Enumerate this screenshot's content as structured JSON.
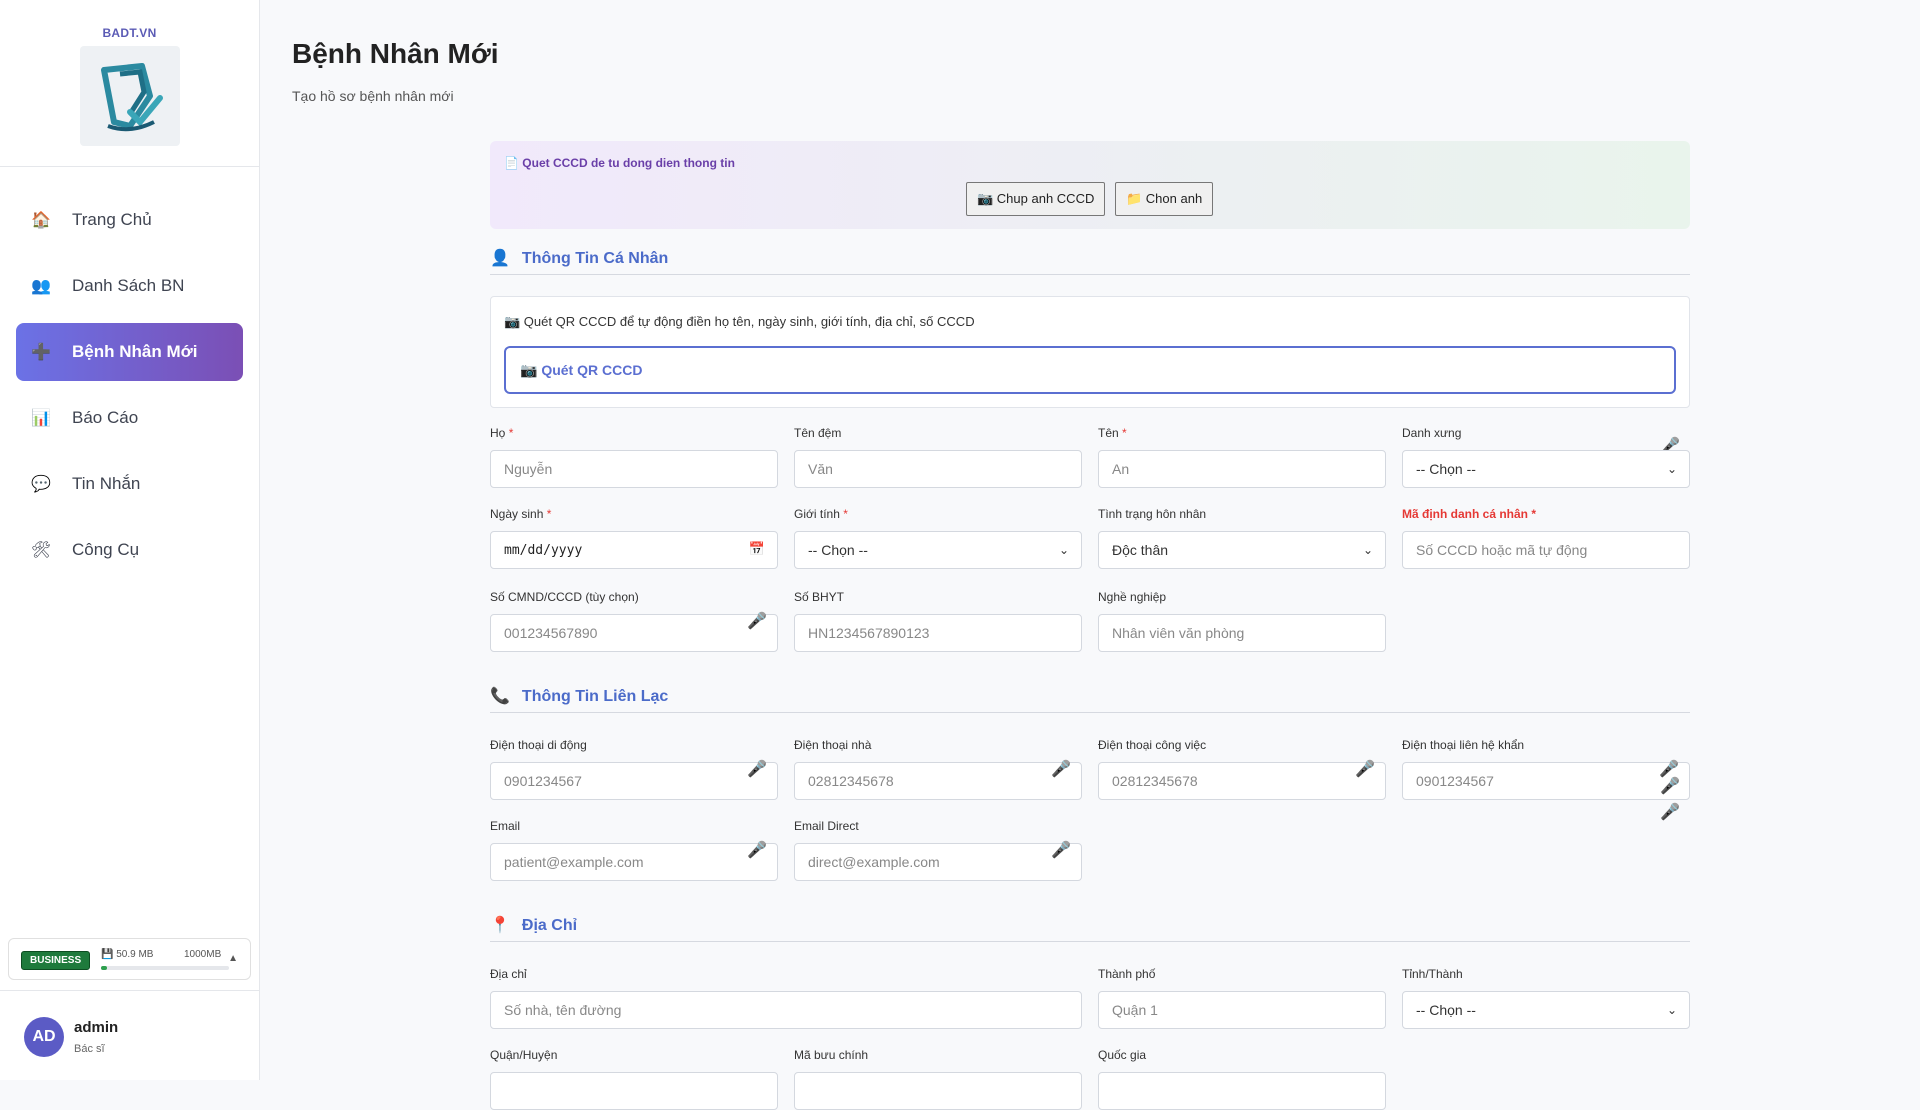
{
  "sidebar": {
    "brand": "BADT.VN",
    "nav": [
      {
        "icon": "🏠",
        "label": "Trang Chủ"
      },
      {
        "icon": "👥",
        "label": "Danh Sách BN"
      },
      {
        "icon": "➕",
        "label": "Bệnh Nhân Mới"
      },
      {
        "icon": "📊",
        "label": "Báo Cáo"
      },
      {
        "icon": "💬",
        "label": "Tin Nhắn"
      },
      {
        "icon": "🛠",
        "label": "Công Cụ"
      }
    ],
    "plan": {
      "badge": "BUSINESS",
      "used": "💾 50.9 MB",
      "max": "1000MB",
      "used_fraction": 0.05,
      "caret": "▲"
    },
    "user": {
      "initials": "AD",
      "name": "admin",
      "role": "Bác sĩ"
    }
  },
  "page": {
    "title": "Bệnh Nhân Mới",
    "subtitle": "Tạo hồ sơ bệnh nhân mới"
  },
  "scan": {
    "title": "📄 Quet CCCD de tu dong dien thong tin",
    "capture_label": "📷 Chup anh CCCD",
    "choose_label": "📁 Chon anh"
  },
  "personal": {
    "title": "Thông Tin Cá Nhân",
    "icon": "👤",
    "qr_hint": "📷 Quét QR CCCD để tự động điền họ tên, ngày sinh, giới tính, địa chỉ, số CCCD",
    "qr_button": "📷 Quét QR CCCD",
    "ho": {
      "label": "Họ",
      "placeholder": "Nguyễn"
    },
    "ten_dem": {
      "label": "Tên đệm",
      "placeholder": "Văn"
    },
    "ten": {
      "label": "Tên",
      "placeholder": "An"
    },
    "danh_xung": {
      "label": "Danh xưng",
      "value": "-- Chọn --"
    },
    "ngay_sinh": {
      "label": "Ngày sinh",
      "value": "mm/dd/yyyy"
    },
    "gioi_tinh": {
      "label": "Giới tính",
      "value": "-- Chọn --"
    },
    "hon_nhan": {
      "label": "Tình trạng hôn nhân",
      "value": "Độc thân"
    },
    "ma_dinh_danh": {
      "label": "Mã định danh cá nhân",
      "placeholder": "Số CCCD hoặc mã tự động"
    },
    "cmnd": {
      "label": "Số CMND/CCCD (tùy chọn)",
      "placeholder": "001234567890"
    },
    "bhyt": {
      "label": "Số BHYT",
      "placeholder": "HN1234567890123"
    },
    "nghe_nghiep": {
      "label": "Nghề nghiệp",
      "placeholder": "Nhân viên văn phòng"
    }
  },
  "contact": {
    "title": "Thông Tin Liên Lạc",
    "icon": "📞",
    "mobile": {
      "label": "Điện thoại di động",
      "placeholder": "0901234567"
    },
    "home": {
      "label": "Điện thoại nhà",
      "placeholder": "02812345678"
    },
    "work": {
      "label": "Điện thoại công việc",
      "placeholder": "02812345678"
    },
    "emergency": {
      "label": "Điện thoại liên hệ khẩn",
      "placeholder": "0901234567"
    },
    "email": {
      "label": "Email",
      "placeholder": "patient@example.com"
    },
    "email_direct": {
      "label": "Email Direct",
      "placeholder": "direct@example.com"
    }
  },
  "address": {
    "title": "Địa Chỉ",
    "icon": "📍",
    "dia_chi": {
      "label": "Địa chỉ",
      "placeholder": "Số nhà, tên đường"
    },
    "thanh_pho": {
      "label": "Thành phố",
      "placeholder": "Quận 1"
    },
    "tinh": {
      "label": "Tỉnh/Thành",
      "value": "-- Chọn --"
    },
    "quan": {
      "label": "Quận/Huyện"
    },
    "ma_buu_chinh": {
      "label": "Mã bưu chính"
    },
    "quoc_gia": {
      "label": "Quốc gia"
    }
  },
  "icons": {
    "mic": "🎤",
    "chevron": "⌄",
    "calendar": "📅"
  }
}
